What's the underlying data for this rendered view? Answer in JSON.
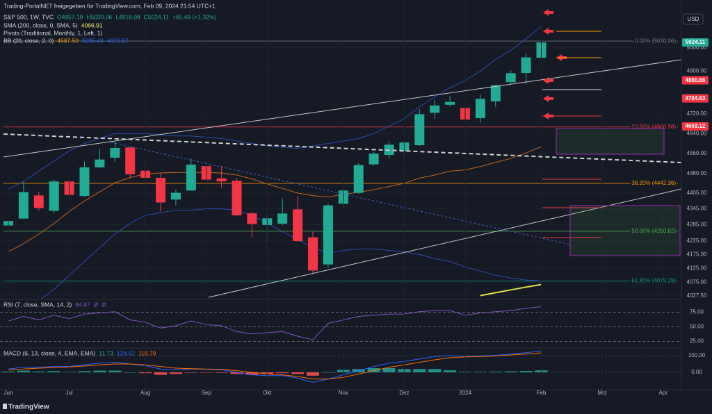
{
  "chart_data": {
    "type": "candlestick",
    "title": "Trading-PortalNET freigegeben für TradingView.com, Feb 09, 2024 21:54 UTC+1",
    "symbol": "S&P 500, 1W, TVC",
    "ohlc_readout": [
      "O4957.19",
      "H5030.06",
      "L4918.09",
      "C5024.11"
    ],
    "change": "+65.49 (+1.32%)",
    "currency": "USD",
    "footer": "TradingView",
    "log_scale": true,
    "grid": true,
    "up_color": "#22ab94",
    "down_color": "#f23645",
    "categories": [
      "Jun",
      null,
      null,
      null,
      "Jul",
      null,
      null,
      null,
      null,
      "Aug",
      null,
      null,
      null,
      "Sep",
      null,
      null,
      null,
      "Okt",
      null,
      null,
      null,
      null,
      "Nov",
      null,
      null,
      null,
      "Dez",
      null,
      null,
      null,
      "2024",
      null,
      null,
      null,
      null,
      "Feb",
      null,
      null,
      null,
      "Mrz",
      null,
      null,
      null,
      "Apr"
    ],
    "open": [
      4282,
      4308,
      4396,
      4337,
      4450,
      4394,
      4505,
      4543,
      4584,
      4492,
      4464,
      4380,
      4415,
      4510,
      4462,
      4453,
      4328,
      4284,
      4289,
      4343,
      4238,
      4139,
      4364,
      4406,
      4517,
      4554,
      4569,
      4593,
      4725,
      4758,
      4745,
      4703,
      4772,
      4853,
      4892,
      4957.19,
      null,
      null,
      null,
      null,
      null,
      null,
      null,
      null
    ],
    "high": [
      4323,
      4448,
      4409,
      4458,
      4456,
      4528,
      4578,
      4607,
      4584,
      4528,
      4482,
      4418,
      4541,
      4515,
      4511,
      4464,
      4334,
      4325,
      4385,
      4393,
      4260,
      4366,
      4424,
      4521,
      4566,
      4610,
      4610,
      4739,
      4779,
      4794,
      4755,
      4802,
      4842,
      4903,
      4976,
      5030.06,
      null,
      null,
      null,
      null,
      null,
      null,
      null,
      null
    ],
    "low": [
      4264,
      4307,
      4337,
      4328,
      4385,
      4390,
      4502,
      4527,
      4461,
      4457,
      4335,
      4357,
      4413,
      4431,
      4427,
      4316,
      4238,
      4216,
      4283,
      4224,
      4104,
      4127,
      4347,
      4401,
      4512,
      4538,
      4546,
      4590,
      4700,
      4751,
      4682,
      4683,
      4748,
      4845,
      4845,
      4918.09,
      null,
      null,
      null,
      null,
      null,
      null,
      null,
      null
    ],
    "close": [
      4299,
      4409,
      4348,
      4450,
      4398,
      4505,
      4536,
      4582,
      4478,
      4464,
      4369,
      4406,
      4516,
      4457,
      4450,
      4320,
      4288,
      4309,
      4327,
      4224,
      4117,
      4358,
      4415,
      4514,
      4559,
      4595,
      4604,
      4719,
      4755,
      4770,
      4697,
      4783,
      4840,
      4891,
      4959,
      5024.11,
      null,
      null,
      null,
      null,
      null,
      null,
      null,
      null
    ],
    "ylim": [
      4017,
      5198
    ],
    "yticks": [
      {
        "value": 5000,
        "label": "5000.00"
      },
      {
        "value": 4900,
        "label": "4900.00"
      },
      {
        "value": 4720,
        "label": "4720.00"
      },
      {
        "value": 4640,
        "label": "4640.00"
      },
      {
        "value": 4560,
        "label": "4560.00"
      },
      {
        "value": 4480,
        "label": "4480.00"
      },
      {
        "value": 4405,
        "label": "4405.00"
      },
      {
        "value": 4345,
        "label": "4345.00"
      },
      {
        "value": 4285,
        "label": "4285.00"
      },
      {
        "value": 4225,
        "label": "4225.00"
      },
      {
        "value": 4175,
        "label": "4175.00"
      },
      {
        "value": 4125,
        "label": "4125.00"
      },
      {
        "value": 4075,
        "label": "4075.00"
      },
      {
        "value": 4027.5,
        "label": "4027.50"
      }
    ],
    "price_markers": [
      {
        "value": 5024.11,
        "color": "#22ab94"
      },
      {
        "value": 4860.66,
        "color": "#f23645"
      },
      {
        "value": 4784.63,
        "color": "#f23645"
      },
      {
        "value": 4669.12,
        "color": "#f23645"
      }
    ],
    "fib_levels": [
      {
        "value": 5030.06,
        "label": "0.00% (5030.06)",
        "color": "#787b86"
      },
      {
        "value": 4666.98,
        "label": "23.60% (4666.98)",
        "color": "#f23645"
      },
      {
        "value": 4442.36,
        "label": "38.20% (4442.36)",
        "color": "#ff9800"
      },
      {
        "value": 4260.82,
        "label": "50.00% (4260.82)",
        "color": "#4caf50"
      },
      {
        "value": 4079.28,
        "label": "61.80% (4079.28)",
        "color": "#089981"
      }
    ],
    "indicators": [
      {
        "label": "SMA (200, close, 0, SMA, 5)",
        "readouts": [
          {
            "text": "4066.91",
            "color": "#f5f06a"
          }
        ]
      },
      {
        "label": "Pivots (Traditional, Monthly, 1, Left, 1)"
      },
      {
        "label": "BB (20, close, 2, 0)",
        "readouts": [
          {
            "text": "4587.50",
            "color": "#ff9800"
          },
          {
            "text": "5095.43",
            "color": "#2962ff"
          },
          {
            "text": "4079.57",
            "color": "#2962ff"
          }
        ]
      }
    ],
    "overlays": [
      {
        "color": "#e0e34a",
        "values": [
          null,
          null,
          null,
          null,
          null,
          null,
          null,
          null,
          null,
          null,
          null,
          null,
          null,
          null,
          null,
          null,
          null,
          null,
          null,
          null,
          null,
          null,
          null,
          null,
          null,
          null,
          null,
          null,
          null,
          null,
          null,
          4028,
          4038,
          4048,
          4058,
          4066.91,
          null,
          null,
          null,
          null,
          null,
          null,
          null,
          null
        ]
      },
      {
        "color": "#c0661c",
        "values": [
          4185,
          4215,
          4250,
          4290,
          4335,
          4375,
          4410,
          4445,
          4465,
          4480,
          4483,
          4485,
          4485,
          4485,
          4483,
          4475,
          4460,
          4440,
          4423,
          4405,
          4395,
          4390,
          4400,
          4408,
          4418,
          4430,
          4443,
          4463,
          4475,
          4490,
          4495,
          4508,
          4525,
          4540,
          4562,
          4587.5,
          null,
          null,
          null,
          null,
          null,
          null,
          null,
          null
        ]
      },
      {
        "color": "#2a4db0",
        "values": [
          4420,
          4450,
          4490,
          4530,
          4570,
          4600,
          4620,
          4640,
          4640,
          4640,
          4635,
          4630,
          4630,
          4625,
          4620,
          4610,
          4600,
          4590,
          4585,
          4580,
          4590,
          4600,
          4610,
          4620,
          4640,
          4670,
          4700,
          4750,
          4790,
          4830,
          4860,
          4900,
          4950,
          4990,
          5040,
          5095.43,
          null,
          null,
          null,
          null,
          null,
          null,
          null,
          null
        ]
      },
      {
        "color": "#2a4db0",
        "values": [
          3950,
          3980,
          4010,
          4050,
          4100,
          4150,
          4200,
          4250,
          4290,
          4320,
          4330,
          4340,
          4340,
          4345,
          4345,
          4340,
          4320,
          4290,
          4260,
          4230,
          4200,
          4180,
          4190,
          4195,
          4195,
          4190,
          4185,
          4175,
          4160,
          4150,
          4130,
          4115,
          4100,
          4090,
          4083,
          4079.57,
          null,
          null,
          null,
          null,
          null,
          null,
          null,
          null
        ]
      }
    ],
    "rsi": {
      "label": "RSI (7, close, SMA, 14, 2)",
      "readouts": [
        "84.67",
        "Ø",
        "Ø"
      ],
      "color": "#7e57c2",
      "values": [
        60,
        68,
        62,
        70,
        64,
        72,
        74,
        76,
        62,
        58,
        48,
        52,
        60,
        54,
        52,
        42,
        38,
        40,
        42,
        34,
        28,
        56,
        62,
        68,
        70,
        72,
        72,
        76,
        78,
        78,
        70,
        74,
        76,
        78,
        82,
        84.67,
        null,
        null,
        null,
        null,
        null,
        null,
        null,
        null
      ],
      "ylim": [
        15,
        96
      ],
      "yticks": [
        {
          "value": 75,
          "label": "75.00"
        },
        {
          "value": 50,
          "label": "50.00"
        },
        {
          "value": 25,
          "label": "25.00"
        }
      ]
    },
    "macd": {
      "label": "MACD (6, 13, close, 4, EMA, EMA)",
      "readouts": [
        "11.73",
        "128.52",
        "116.79"
      ],
      "histogram": [
        5,
        10,
        5,
        7,
        3,
        7,
        10,
        10,
        0,
        -5,
        -15,
        -10,
        -2,
        -2,
        -3,
        -10,
        -15,
        -10,
        -5,
        -10,
        -20,
        0,
        15,
        20,
        25,
        25,
        20,
        20,
        20,
        12,
        3,
        3,
        4,
        6,
        8,
        11.73,
        null,
        null,
        null,
        null,
        null,
        null,
        null,
        null
      ],
      "macd": [
        20,
        30,
        30,
        35,
        35,
        45,
        55,
        60,
        50,
        40,
        20,
        15,
        20,
        18,
        15,
        0,
        -15,
        -20,
        -20,
        -35,
        -60,
        -40,
        -15,
        10,
        35,
        55,
        65,
        80,
        95,
        100,
        95,
        98,
        102,
        110,
        118,
        128.52,
        null,
        null,
        null,
        null,
        null,
        null,
        null,
        null
      ],
      "signal": [
        15,
        20,
        25,
        28,
        32,
        38,
        45,
        50,
        50,
        45,
        35,
        25,
        22,
        20,
        18,
        10,
        0,
        -10,
        -15,
        -25,
        -40,
        -40,
        -30,
        -10,
        10,
        30,
        45,
        60,
        75,
        88,
        92,
        95,
        98,
        104,
        110,
        116.79,
        null,
        null,
        null,
        null,
        null,
        null,
        null,
        null
      ],
      "macd_color": "#2962ff",
      "signal_color": "#ff6d00",
      "ylim": [
        -100,
        137.5
      ],
      "yticks": [
        {
          "value": 100,
          "label": "100.00"
        },
        {
          "value": 0,
          "label": "0.00"
        }
      ]
    }
  }
}
